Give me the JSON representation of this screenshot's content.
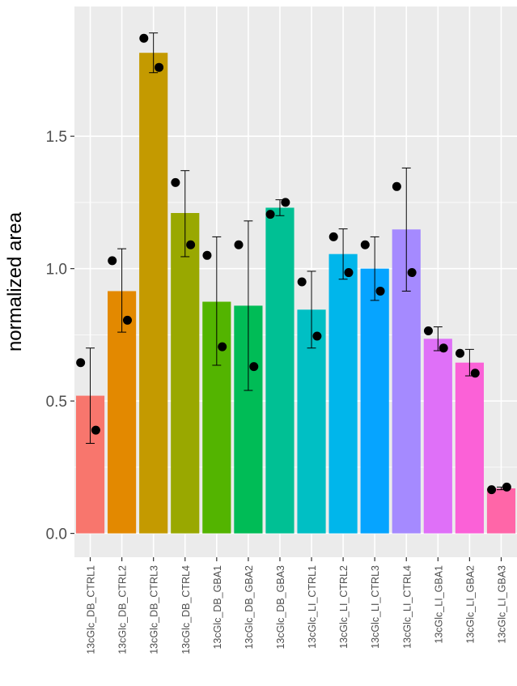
{
  "chart_data": {
    "type": "bar",
    "title": "",
    "xlabel": "",
    "ylabel": "normalized area",
    "ylim": [
      -0.09,
      1.99
    ],
    "yticks": [
      0.0,
      0.5,
      1.0,
      1.5
    ],
    "ytick_labels": [
      "0.0",
      "0.5",
      "1.0",
      "1.5"
    ],
    "grid": true,
    "legend": "none",
    "panel_background": "#ebebeb",
    "grid_color": "#ffffff",
    "categories": [
      "13cGlc_DB_CTRL1",
      "13cGlc_DB_CTRL2",
      "13cGlc_DB_CTRL3",
      "13cGlc_DB_CTRL4",
      "13cGlc_DB_GBA1",
      "13cGlc_DB_GBA2",
      "13cGlc_DB_GBA3",
      "13cGlc_LI_CTRL1",
      "13cGlc_LI_CTRL2",
      "13cGlc_LI_CTRL3",
      "13cGlc_LI_CTRL4",
      "13cGlc_LI_GBA1",
      "13cGlc_LI_GBA2",
      "13cGlc_LI_GBA3"
    ],
    "values": [
      0.52,
      0.915,
      1.815,
      1.21,
      0.875,
      0.86,
      1.23,
      0.845,
      1.055,
      1.0,
      1.148,
      0.735,
      0.645,
      0.17
    ],
    "error_low": [
      0.34,
      0.76,
      1.74,
      1.045,
      0.635,
      0.54,
      1.2,
      0.7,
      0.96,
      0.88,
      0.915,
      0.69,
      0.595,
      0.165
    ],
    "error_high": [
      0.7,
      1.075,
      1.89,
      1.37,
      1.12,
      1.18,
      1.26,
      0.99,
      1.15,
      1.12,
      1.38,
      0.78,
      0.695,
      0.175
    ],
    "points": [
      [
        0.645,
        0.39
      ],
      [
        1.03,
        0.805
      ],
      [
        1.87,
        1.76
      ],
      [
        1.325,
        1.09
      ],
      [
        1.05,
        0.705
      ],
      [
        1.09,
        0.63
      ],
      [
        1.205,
        1.25
      ],
      [
        0.95,
        0.745
      ],
      [
        1.12,
        0.985
      ],
      [
        1.09,
        0.915
      ],
      [
        1.31,
        0.985
      ],
      [
        0.765,
        0.7
      ],
      [
        0.68,
        0.605
      ],
      [
        0.165,
        0.175
      ]
    ],
    "colors": [
      "#F8766D",
      "#E38900",
      "#C49A00",
      "#99A800",
      "#53B400",
      "#00BC56",
      "#00C094",
      "#00BFC4",
      "#00B6EB",
      "#06A4FF",
      "#A58AFF",
      "#DF70F8",
      "#FB61D7",
      "#FF66A8"
    ]
  }
}
